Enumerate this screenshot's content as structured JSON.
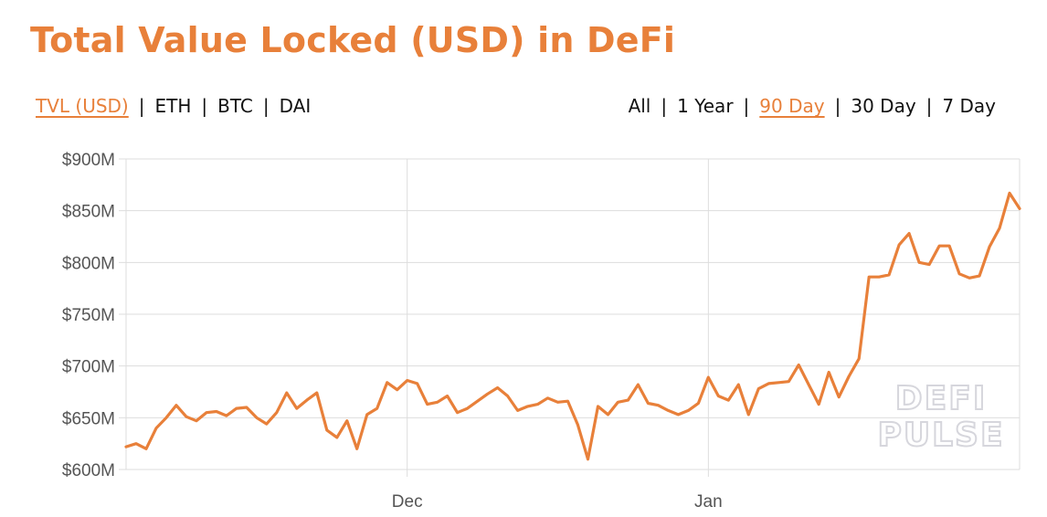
{
  "header": {
    "title": "Total Value Locked (USD) in DeFi"
  },
  "currency_toggle": {
    "options": [
      "TVL (USD)",
      "ETH",
      "BTC",
      "DAI"
    ],
    "selected": "TVL (USD)"
  },
  "range_toggle": {
    "options": [
      "All",
      "1 Year",
      "90 Day",
      "30 Day",
      "7 Day"
    ],
    "selected": "90 Day"
  },
  "watermark": {
    "line1": "DEFI",
    "line2": "PULSE"
  },
  "colors": {
    "accent": "#e8803a",
    "line": "#e8803a",
    "grid": "#dddddd",
    "text": "#111111"
  },
  "chart_data": {
    "type": "line",
    "title": "Total Value Locked (USD) in DeFi",
    "xlabel": "",
    "ylabel": "",
    "ylim": [
      600,
      900
    ],
    "y_unit": "$M",
    "yticks": [
      600,
      650,
      700,
      750,
      800,
      850,
      900
    ],
    "ytick_labels": [
      "$600M",
      "$650M",
      "$700M",
      "$750M",
      "$800M",
      "$850M",
      "$900M"
    ],
    "xticks": [
      {
        "index": 28,
        "label": "Dec"
      },
      {
        "index": 58,
        "label": "Jan"
      }
    ],
    "grid": true,
    "legend": "none",
    "series": [
      {
        "values": [
          622,
          625,
          620,
          640,
          650,
          662,
          651,
          647,
          655,
          656,
          652,
          659,
          660,
          650,
          644,
          655,
          674,
          659,
          667,
          674,
          638,
          631,
          647,
          620,
          653,
          659,
          684,
          677,
          686,
          683,
          663,
          665,
          671,
          655,
          659,
          666,
          673,
          679,
          671,
          657,
          661,
          663,
          669,
          665,
          666,
          643,
          610,
          661,
          653,
          665,
          667,
          682,
          664,
          662,
          657,
          653,
          657,
          664,
          689,
          671,
          667,
          682,
          653,
          678,
          683,
          684,
          685,
          701,
          682,
          663,
          694,
          670,
          690,
          707,
          786,
          786,
          788,
          817,
          828,
          800,
          798,
          816,
          816,
          789,
          785,
          787,
          815,
          833,
          867,
          852
        ]
      }
    ]
  }
}
